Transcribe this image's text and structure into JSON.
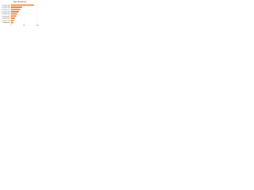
{
  "chart_data": {
    "type": "bar",
    "orientation": "horizontal",
    "title": "Top categories",
    "categories": [
      "Category A",
      "Category B",
      "Category C",
      "Category D",
      "Category E",
      "Category F",
      "Category G",
      "Category H",
      "Category I"
    ],
    "values": [
      88,
      42,
      35,
      30,
      24,
      20,
      15,
      11,
      8
    ],
    "color": "#f0883a",
    "xlim": [
      0,
      100
    ],
    "xticks": [
      0,
      50,
      100
    ],
    "grid": true
  }
}
